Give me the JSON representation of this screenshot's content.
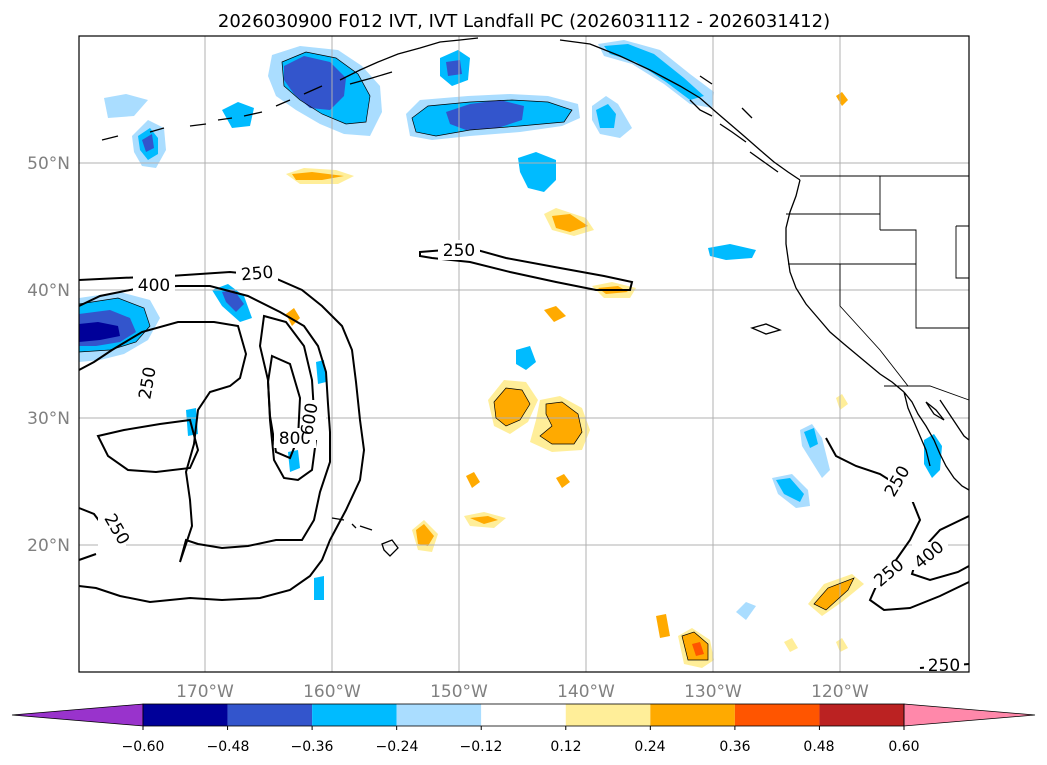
{
  "title": "2026030900 F012 IVT, IVT Landfall PC (2026031112 - 2026031412)",
  "latitude_labels": [
    "50°N",
    "40°N",
    "30°N",
    "20°N"
  ],
  "longitude_labels": [
    "170°W",
    "160°W",
    "150°W",
    "140°W",
    "130°W",
    "120°W"
  ],
  "colorbar": {
    "ticks": [
      "−0.60",
      "−0.48",
      "−0.36",
      "−0.24",
      "−0.12",
      "0.12",
      "0.24",
      "0.36",
      "0.48",
      "0.60"
    ],
    "colors": [
      "#9933cc",
      "#000099",
      "#3355cc",
      "#00bbff",
      "#aaddff",
      "#ffffff",
      "#ffee99",
      "#ffaa00",
      "#ff5500",
      "#bb2222",
      "#ff88aa"
    ]
  },
  "contour_labels": [
    "250",
    "400",
    "250",
    "250",
    "800",
    "600",
    "250",
    "250",
    "250",
    "400",
    "250"
  ],
  "colors": {
    "contour": "#000000",
    "grid": "#b0b0b0",
    "coast": "#000000",
    "neg_light": "#aaddff",
    "neg_mid": "#00bbff",
    "neg_strong": "#3355cc",
    "neg_extreme": "#000099",
    "pos_light": "#ffee99",
    "pos_mid": "#ffaa00",
    "pos_strong": "#ff5500"
  }
}
